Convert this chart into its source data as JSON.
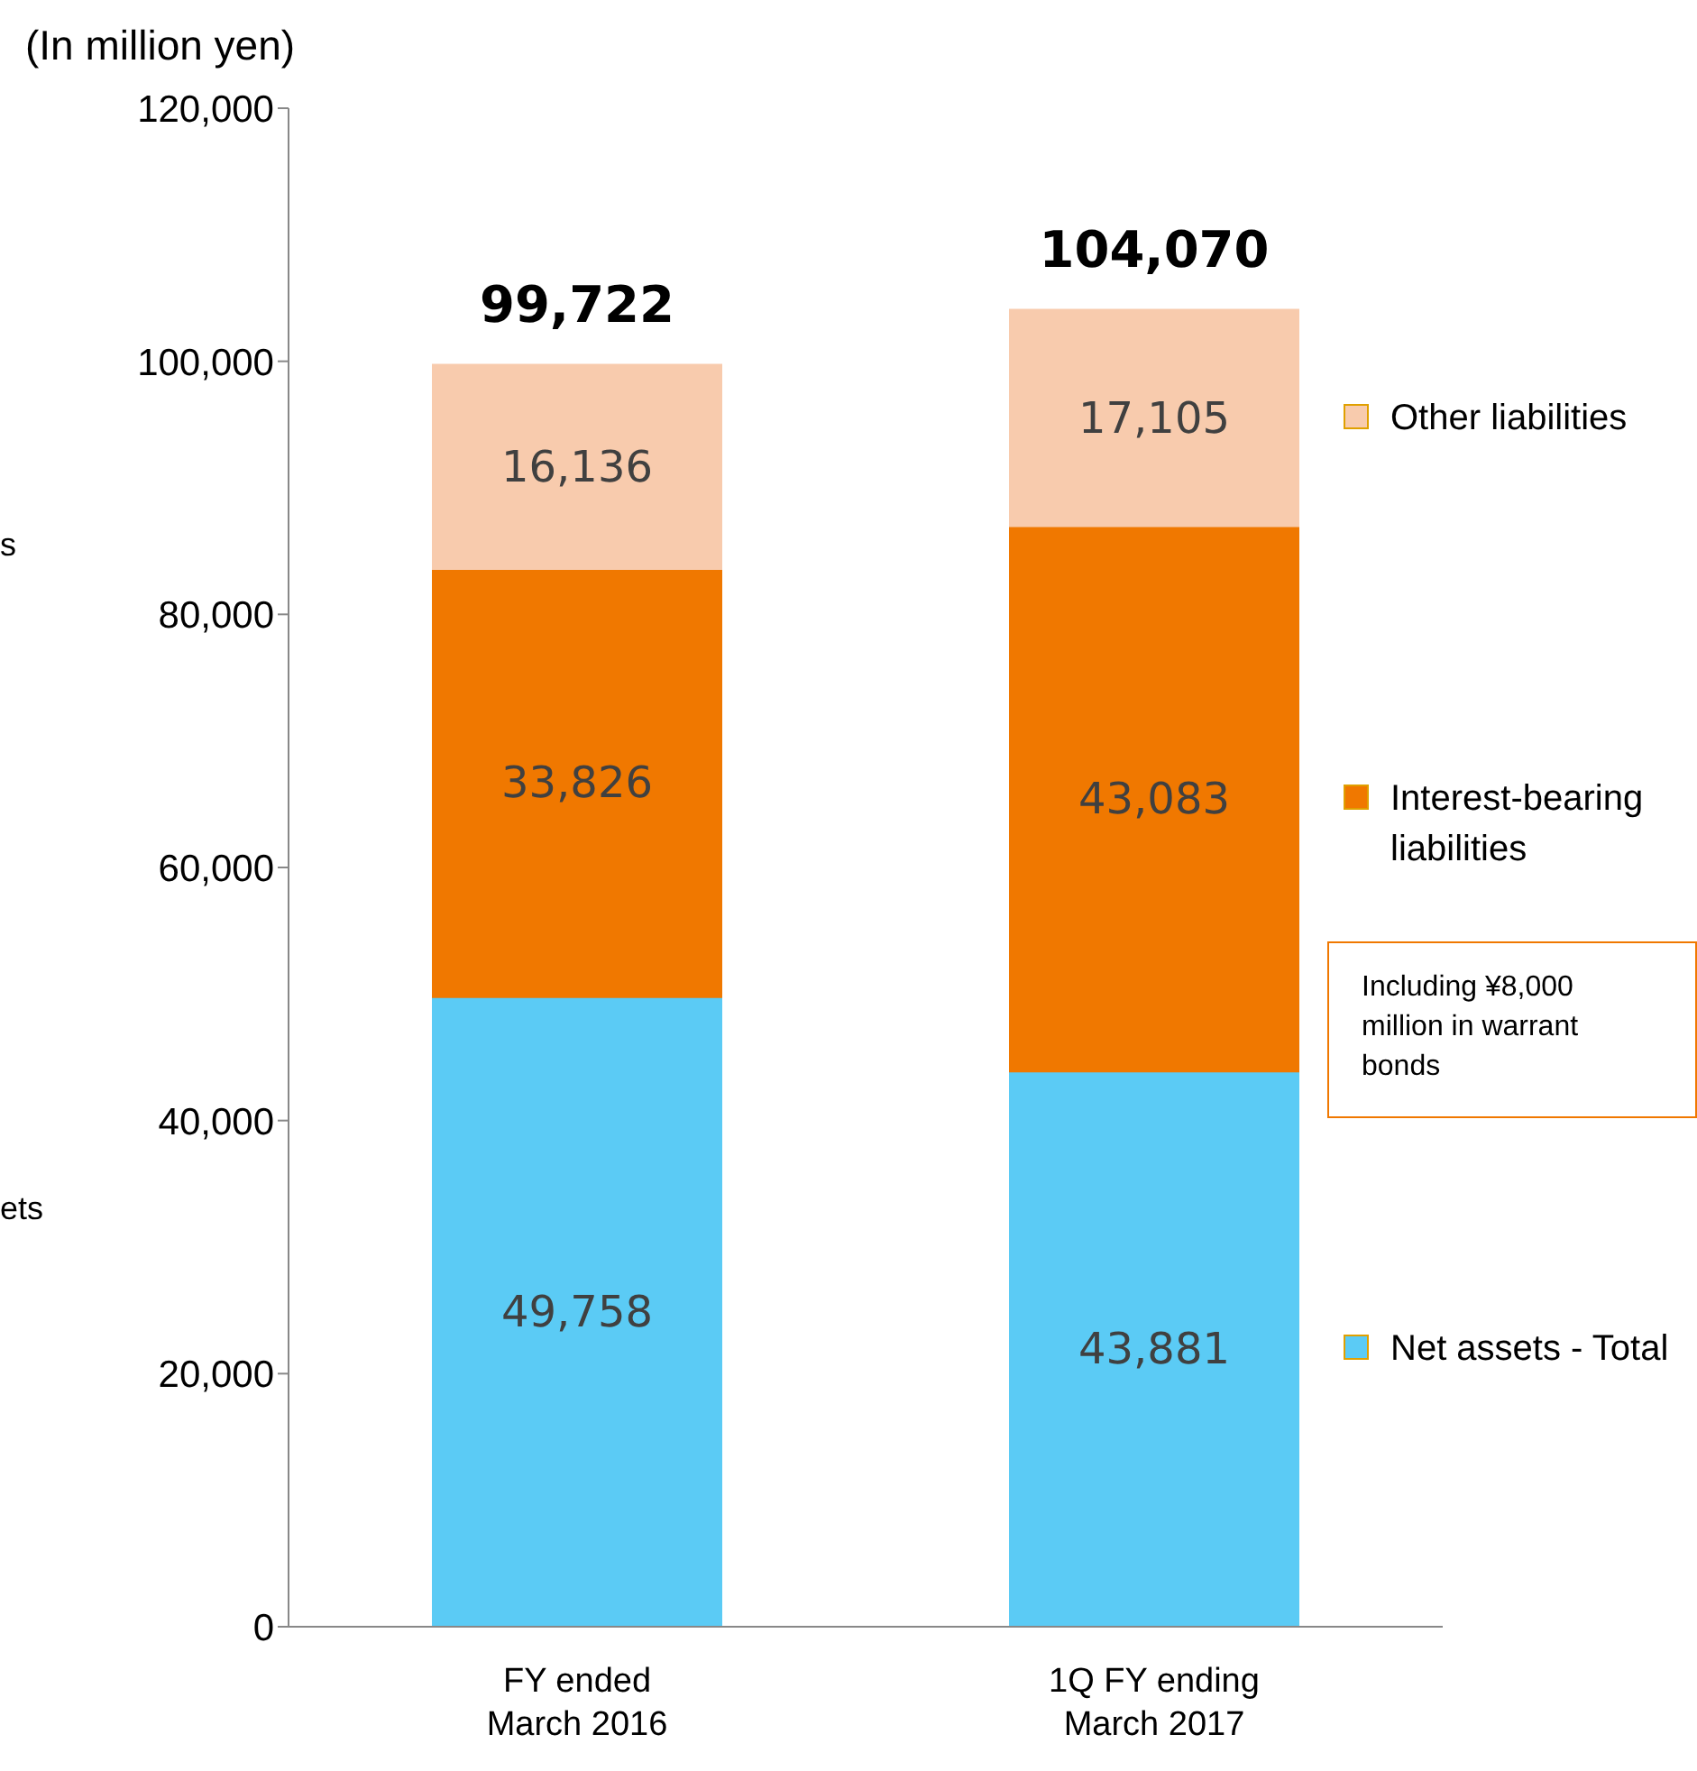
{
  "chart_data": {
    "type": "bar",
    "stacked": true,
    "ylabel": "(In million yen)",
    "categories": [
      "FY ended March 2016",
      "1Q FY ending March 2017"
    ],
    "series": [
      {
        "name": "Net assets - Total",
        "color": "#5bcbf5",
        "values": [
          49758,
          43881
        ],
        "value_labels": [
          "49,758",
          "43,881"
        ]
      },
      {
        "name": "Interest-bearing liabilities",
        "color": "#f07800",
        "values": [
          33826,
          43083
        ],
        "value_labels": [
          "33,826",
          "43,083"
        ]
      },
      {
        "name": "Other liabilities",
        "color": "#f8cbad",
        "values": [
          16136,
          17105
        ],
        "value_labels": [
          "16,136",
          "17,105"
        ]
      }
    ],
    "totals": [
      "99,722",
      "104,070"
    ],
    "ylim": [
      0,
      120000
    ],
    "yticks": [
      {
        "value": 0,
        "label": "0"
      },
      {
        "value": 20000,
        "label": "20,000"
      },
      {
        "value": 40000,
        "label": "40,000"
      },
      {
        "value": 60000,
        "label": "60,000"
      },
      {
        "value": 80000,
        "label": "80,000"
      },
      {
        "value": 100000,
        "label": "100,000"
      },
      {
        "value": 120000,
        "label": "120,000"
      }
    ],
    "legend": "right",
    "annotations": [
      "Including ¥8,000 million in warrant bonds",
      "s",
      "ets"
    ]
  }
}
